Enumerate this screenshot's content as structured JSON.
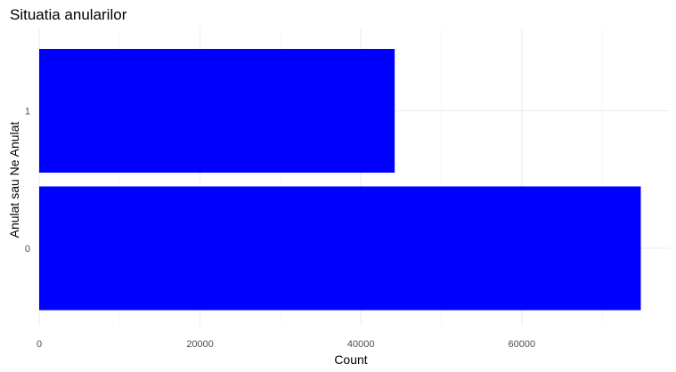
{
  "chart_data": {
    "type": "bar",
    "orientation": "horizontal",
    "title": "Situatia anularilor",
    "xlabel": "Count",
    "ylabel": "Anulat sau Ne Anulat",
    "categories": [
      "0",
      "1"
    ],
    "values": [
      74800,
      44200
    ],
    "xlim": [
      0,
      78400
    ],
    "x_ticks": [
      0,
      20000,
      40000,
      60000
    ],
    "x_tick_labels": [
      "0",
      "20000",
      "40000",
      "60000"
    ],
    "bar_color": "#0000ff",
    "grid": true,
    "legend": "none"
  }
}
